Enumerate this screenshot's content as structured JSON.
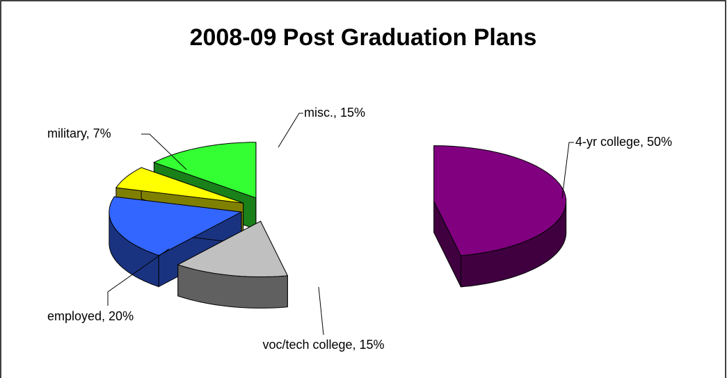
{
  "chart_data": {
    "type": "pie",
    "title": "2008-09 Post Graduation Plans",
    "values": [
      50,
      15,
      20,
      7,
      15
    ],
    "value_labels": [
      "4-yr college, 50%",
      "voc/tech college, 15%",
      "employed, 20%",
      "military, 7%",
      "misc., 15%"
    ],
    "colors": [
      "#800080",
      "#c0c0c0",
      "#3366ff",
      "#ffff00",
      "#33ff33"
    ],
    "three_d": true
  }
}
